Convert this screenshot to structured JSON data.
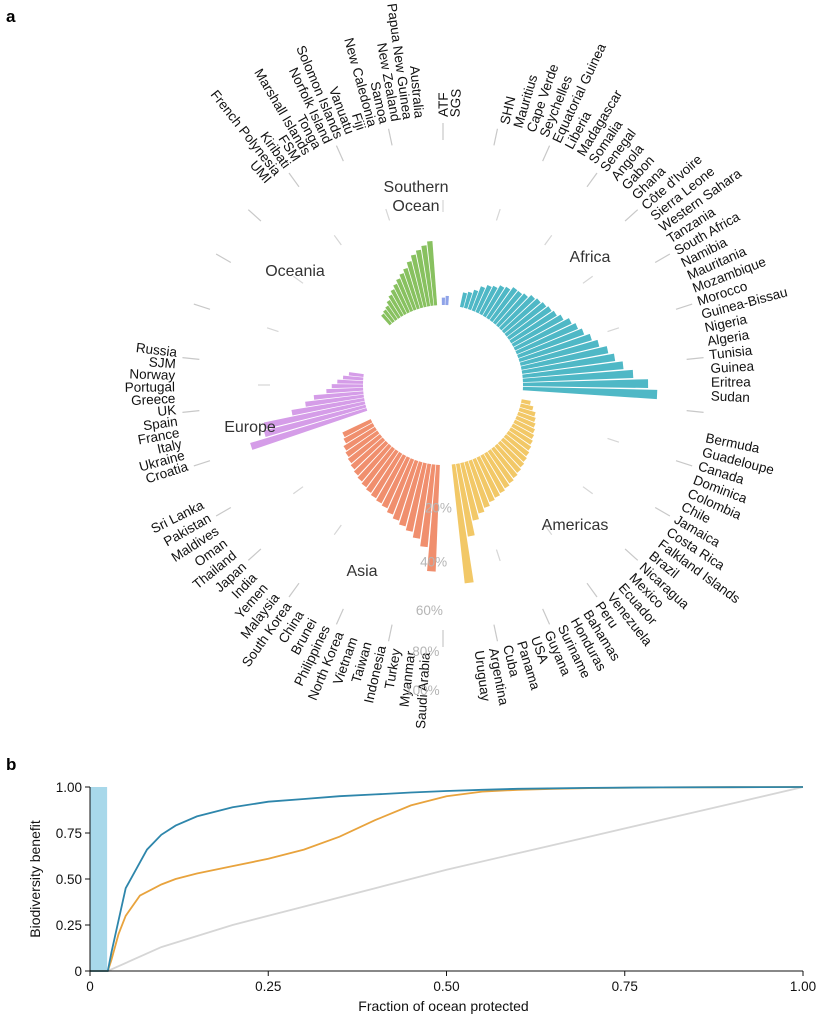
{
  "panel_labels": {
    "a": "a",
    "b": "b"
  },
  "chart_data": [
    {
      "type": "bar",
      "subtype": "radial",
      "panel": "a",
      "ring_labels": [
        "20%",
        "40%",
        "60%",
        "80%",
        "100%"
      ],
      "value_unit": "%",
      "rlim": [
        0,
        100
      ],
      "regions": [
        {
          "name": "Africa",
          "color": "#4fb8c6",
          "countries": [
            "SHN",
            "Mauritius",
            "Cape Verde",
            "Seychelles",
            "Equatorial Guinea",
            "Liberia",
            "Madagascar",
            "Somalia",
            "Senegal",
            "Angola",
            "Gabon",
            "Ghana",
            "Côte d'Ivoire",
            "Sierra Leone",
            "Western Sahara",
            "Tanzania",
            "South Africa",
            "Namibia",
            "Mauritania",
            "Mozambique",
            "Morocco",
            "Guinea-Bissau",
            "Nigeria",
            "Algeria",
            "Tunisia",
            "Guinea",
            "Eritrea",
            "Sudan"
          ],
          "values": [
            8,
            9,
            11,
            14,
            16,
            17,
            19,
            20,
            22,
            22,
            23,
            25,
            26,
            27,
            28,
            29,
            31,
            34,
            36,
            38,
            41,
            44,
            48,
            51,
            55,
            60,
            68,
            73
          ]
        },
        {
          "name": "Americas",
          "color": "#f2c867",
          "countries": [
            "Bermuda",
            "Guadeloupe",
            "Canada",
            "Dominica",
            "Colombia",
            "Chile",
            "Jamaica",
            "Costa Rica",
            "Falkland Islands",
            "Brazil",
            "Nicaragua",
            "Mexico",
            "Ecuador",
            "Venezuela",
            "Peru",
            "Bahamas",
            "Honduras",
            "Suriname",
            "Guyana",
            "USA",
            "Panama",
            "Cuba",
            "Argentina",
            "Uruguay"
          ],
          "values": [
            5,
            7,
            9,
            10,
            11,
            12,
            13,
            14,
            15,
            16,
            17,
            18,
            19,
            20,
            21,
            22,
            23,
            24,
            25,
            27,
            29,
            32,
            40,
            65
          ]
        },
        {
          "name": "Asia",
          "color": "#f08f6e",
          "countries": [
            "Saudi Arabia",
            "Myanmar",
            "Turkey",
            "Indonesia",
            "Taiwan",
            "Vietnam",
            "North Korea",
            "Philippines",
            "Brunei",
            "China",
            "South Korea",
            "Malaysia",
            "Yemen",
            "India",
            "Japan",
            "Thailand",
            "Oman",
            "Maldives",
            "Pakistan",
            "Sri Lanka"
          ],
          "values": [
            58,
            45,
            41,
            38,
            36,
            34,
            32,
            30,
            29,
            28,
            27,
            26,
            25,
            24,
            23,
            22,
            21,
            20,
            18,
            17
          ]
        },
        {
          "name": "Europe",
          "color": "#d59de8",
          "countries": [
            "Croatia",
            "Ukraine",
            "Italy",
            "France",
            "Spain",
            "UK",
            "Greece",
            "Portugal",
            "Norway",
            "SJM",
            "Russia"
          ],
          "values": [
            66,
            57,
            56,
            40,
            32,
            27,
            20,
            17,
            14,
            11,
            8
          ]
        },
        {
          "name": "Oceania",
          "color": "#88c160",
          "countries": [
            "UMI",
            "French Polynesia",
            "Kiribati",
            "FSM",
            "Marshall Islands",
            "Tonga",
            "Norfolk Island",
            "Solomon Islands",
            "Vanuatu",
            "Fiji",
            "New Caledonia",
            "Samoa",
            "New Zealand",
            "Papua New Guinea",
            "Australia"
          ],
          "values": [
            7,
            8,
            9,
            11,
            13,
            15,
            17,
            19,
            21,
            23,
            26,
            29,
            31,
            33,
            35
          ]
        },
        {
          "name": "Southern\nOcean",
          "color": "#8fa3e8",
          "countries": [
            "ATF",
            "SGS"
          ],
          "values": [
            4,
            5
          ]
        }
      ]
    },
    {
      "type": "line",
      "panel": "b",
      "xlabel": "Fraction of ocean protected",
      "ylabel": "Biodiversity benefit",
      "xlim": [
        0,
        1
      ],
      "ylim": [
        0,
        1
      ],
      "xticks": [
        "0",
        "0.25",
        "0.50",
        "0.75",
        "1.00"
      ],
      "yticks": [
        "0",
        "0.25",
        "0.50",
        "0.75",
        "1.00"
      ],
      "current_protection": {
        "from": 0,
        "to": 0.024,
        "color": "#a8d8ea"
      },
      "series": [
        {
          "color": "#2e86ab",
          "x": [
            0,
            0.025,
            0.03,
            0.05,
            0.08,
            0.1,
            0.12,
            0.15,
            0.2,
            0.25,
            0.3,
            0.35,
            0.4,
            0.45,
            0.5,
            0.55,
            0.6,
            0.7,
            0.8,
            0.9,
            1.0
          ],
          "y": [
            0,
            0,
            0.1,
            0.45,
            0.66,
            0.74,
            0.79,
            0.84,
            0.89,
            0.92,
            0.935,
            0.95,
            0.96,
            0.97,
            0.978,
            0.985,
            0.99,
            0.995,
            0.998,
            0.999,
            1.0
          ]
        },
        {
          "color": "#e8a33d",
          "x": [
            0,
            0.025,
            0.03,
            0.04,
            0.05,
            0.07,
            0.1,
            0.12,
            0.15,
            0.2,
            0.25,
            0.3,
            0.35,
            0.4,
            0.45,
            0.5,
            0.55,
            0.6,
            0.65,
            0.7,
            0.8,
            0.9,
            1.0
          ],
          "y": [
            0,
            0,
            0.06,
            0.2,
            0.3,
            0.41,
            0.47,
            0.5,
            0.53,
            0.57,
            0.61,
            0.66,
            0.73,
            0.82,
            0.9,
            0.95,
            0.975,
            0.985,
            0.99,
            0.994,
            0.998,
            0.999,
            1.0
          ]
        },
        {
          "color": "#d6d6d6",
          "x": [
            0,
            0.025,
            0.1,
            0.2,
            0.3,
            0.4,
            0.5,
            0.6,
            0.7,
            0.8,
            0.9,
            1.0
          ],
          "y": [
            0,
            0,
            0.13,
            0.25,
            0.35,
            0.45,
            0.55,
            0.64,
            0.73,
            0.82,
            0.91,
            1.0
          ]
        }
      ]
    }
  ]
}
